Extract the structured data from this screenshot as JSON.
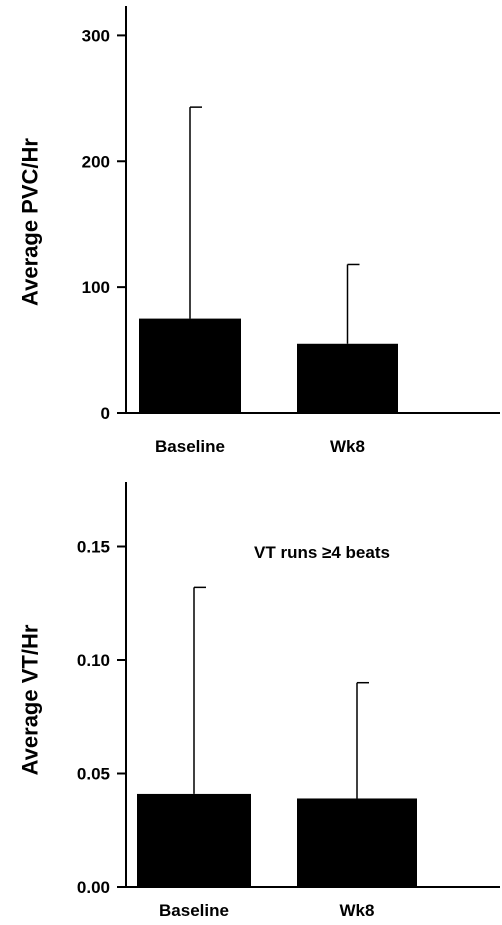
{
  "chart_data": [
    {
      "type": "bar",
      "title": "",
      "xlabel": "",
      "ylabel": "Average PVC/Hr",
      "categories": [
        "Baseline",
        "Wk8"
      ],
      "values": [
        75,
        55
      ],
      "error_upper": [
        243,
        118
      ],
      "ylim": [
        0,
        320
      ],
      "yticks": [
        0,
        100,
        200,
        300
      ],
      "ytick_labels": [
        "0",
        "100",
        "200",
        "300"
      ],
      "annotation": "",
      "grid": false,
      "legend": "none",
      "colors": {
        "bar": "#000000",
        "axis": "#000000",
        "text": "#000000"
      }
    },
    {
      "type": "bar",
      "title": "",
      "xlabel": "",
      "ylabel": "Average VT/Hr",
      "categories": [
        "Baseline",
        "Wk8"
      ],
      "values": [
        0.041,
        0.039
      ],
      "error_upper": [
        0.132,
        0.09
      ],
      "ylim": [
        0,
        0.175
      ],
      "yticks": [
        0,
        0.05,
        0.1,
        0.15
      ],
      "ytick_labels": [
        "0.00",
        "0.05",
        "0.10",
        "0.15"
      ],
      "annotation": "VT runs ≥4 beats",
      "grid": false,
      "legend": "none",
      "colors": {
        "bar": "#000000",
        "axis": "#000000",
        "text": "#000000"
      }
    }
  ]
}
